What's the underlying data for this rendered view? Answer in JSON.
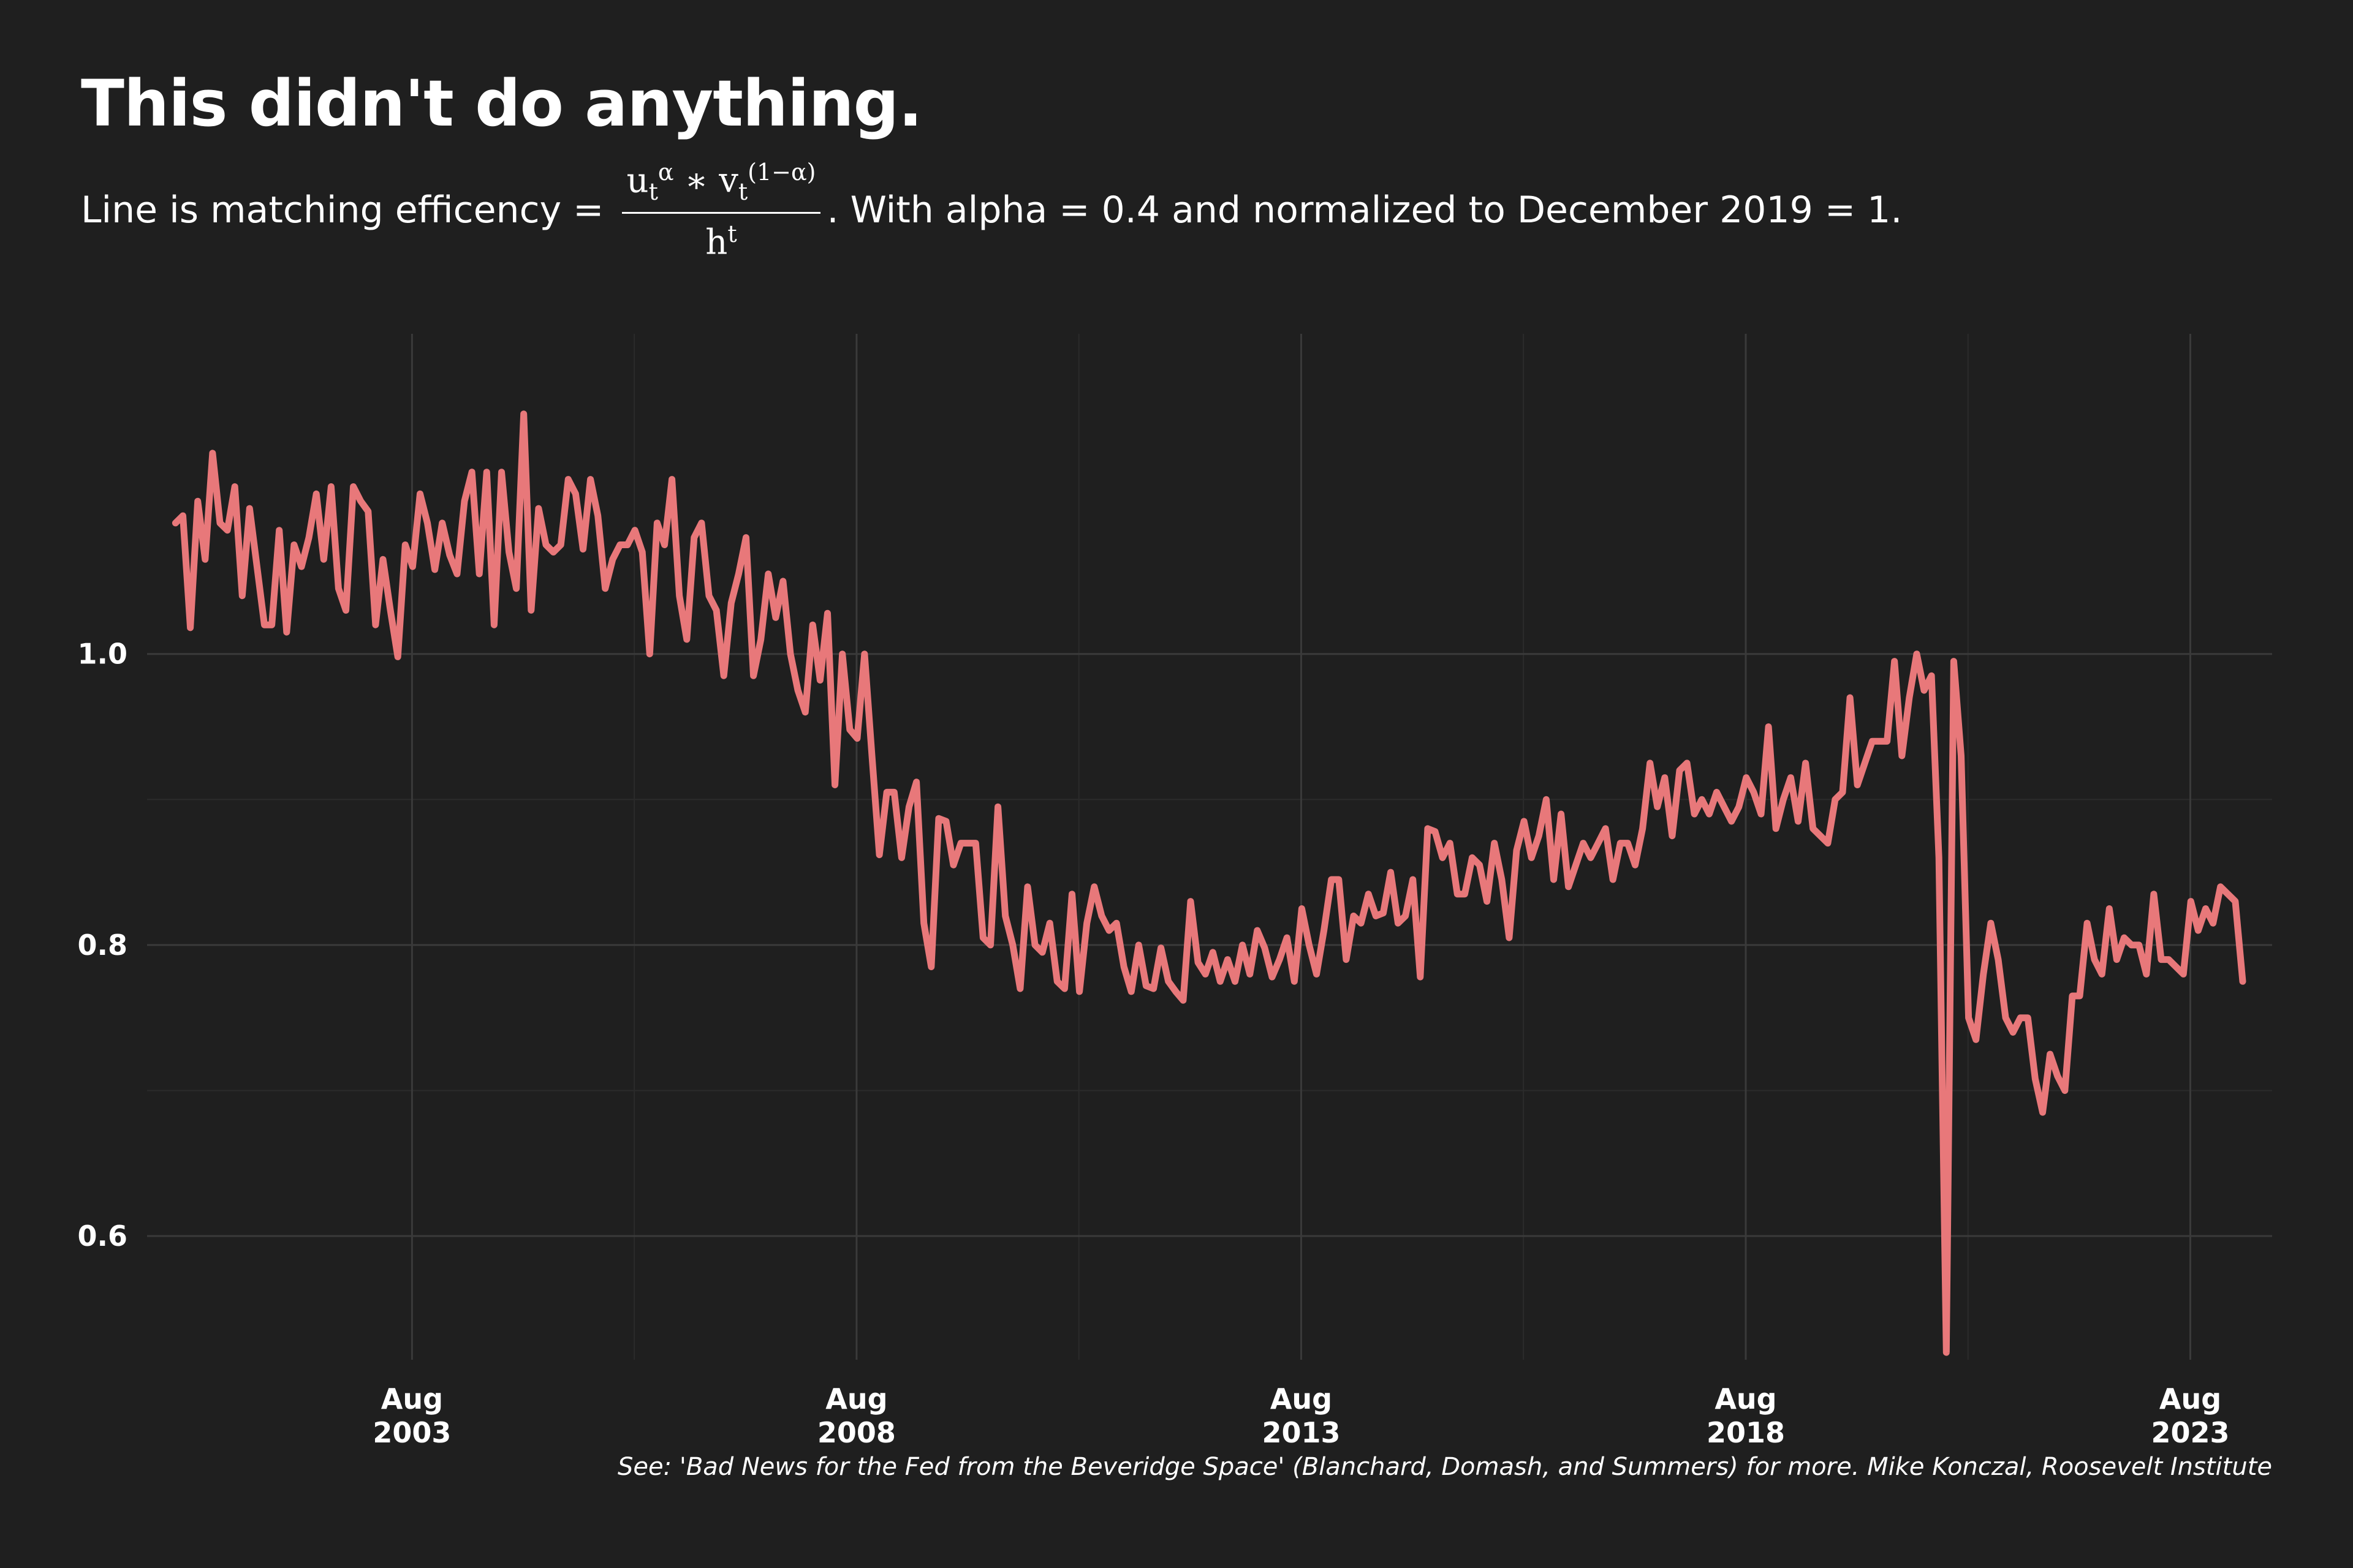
{
  "title": "This didn't do anything.",
  "subtitle": {
    "prefix": "Line is matching efficency = ",
    "formula_numerator_u": "u",
    "formula_u_sub": "t",
    "formula_u_sup": "α",
    "formula_times": " ∗ ",
    "formula_numerator_v": "v",
    "formula_v_sub": "t",
    "formula_v_sup": "(1−α)",
    "formula_denominator": "h",
    "formula_den_sup": "t",
    "suffix": ". With alpha = 0.4 and normalized to December 2019 = 1."
  },
  "caption": "See: 'Bad News for the Fed from the Beveridge Space' (Blanchard, Domash, and Summers) for more. Mike Konczal, Roosevelt Institute",
  "colors": {
    "background": "#1f1f1f",
    "line": "#e8787a",
    "grid": "#3a3a3a",
    "text": "#ffffff"
  },
  "chart_data": {
    "type": "line",
    "xlim": [
      2000.6,
      2024.5
    ],
    "ylim": [
      0.515,
      1.22
    ],
    "grid": true,
    "y_ticks": [
      {
        "value": 0.6,
        "label": "0.6"
      },
      {
        "value": 0.8,
        "label": "0.8"
      },
      {
        "value": 1.0,
        "label": "1.0"
      }
    ],
    "x_ticks": [
      {
        "value": 2003.58,
        "month": "Aug",
        "year": "2003"
      },
      {
        "value": 2008.58,
        "month": "Aug",
        "year": "2008"
      },
      {
        "value": 2013.58,
        "month": "Aug",
        "year": "2013"
      },
      {
        "value": 2018.58,
        "month": "Aug",
        "year": "2018"
      },
      {
        "value": 2023.58,
        "month": "Aug",
        "year": "2023"
      }
    ],
    "series": [
      {
        "name": "",
        "x_start": 2000.92,
        "x_step": 0.08333,
        "values": [
          1.09,
          1.095,
          1.018,
          1.105,
          1.065,
          1.138,
          1.09,
          1.085,
          1.115,
          1.04,
          1.1,
          1.06,
          1.02,
          1.02,
          1.085,
          1.015,
          1.075,
          1.06,
          1.08,
          1.11,
          1.065,
          1.115,
          1.045,
          1.03,
          1.115,
          1.105,
          1.098,
          1.02,
          1.065,
          1.03,
          0.998,
          1.075,
          1.06,
          1.11,
          1.09,
          1.058,
          1.09,
          1.068,
          1.055,
          1.105,
          1.125,
          1.055,
          1.125,
          1.02,
          1.125,
          1.07,
          1.045,
          1.165,
          1.03,
          1.1,
          1.075,
          1.07,
          1.075,
          1.12,
          1.11,
          1.072,
          1.12,
          1.095,
          1.045,
          1.065,
          1.075,
          1.075,
          1.085,
          1.07,
          1.0,
          1.09,
          1.075,
          1.12,
          1.04,
          1.01,
          1.08,
          1.09,
          1.04,
          1.03,
          0.985,
          1.035,
          1.055,
          1.08,
          0.985,
          1.01,
          1.055,
          1.025,
          1.05,
          1.0,
          0.975,
          0.96,
          1.02,
          0.982,
          1.028,
          0.91,
          1.0,
          0.948,
          0.942,
          1.0,
          0.93,
          0.862,
          0.905,
          0.905,
          0.86,
          0.895,
          0.912,
          0.815,
          0.785,
          0.887,
          0.885,
          0.855,
          0.87,
          0.87,
          0.87,
          0.805,
          0.8,
          0.895,
          0.82,
          0.8,
          0.77,
          0.84,
          0.8,
          0.795,
          0.815,
          0.775,
          0.77,
          0.835,
          0.768,
          0.815,
          0.84,
          0.82,
          0.81,
          0.815,
          0.785,
          0.768,
          0.8,
          0.772,
          0.77,
          0.798,
          0.775,
          0.768,
          0.762,
          0.83,
          0.788,
          0.78,
          0.795,
          0.775,
          0.79,
          0.775,
          0.8,
          0.78,
          0.81,
          0.798,
          0.778,
          0.79,
          0.805,
          0.775,
          0.825,
          0.8,
          0.78,
          0.81,
          0.845,
          0.845,
          0.79,
          0.82,
          0.815,
          0.835,
          0.82,
          0.822,
          0.85,
          0.815,
          0.82,
          0.845,
          0.778,
          0.88,
          0.878,
          0.86,
          0.87,
          0.835,
          0.835,
          0.86,
          0.855,
          0.83,
          0.87,
          0.845,
          0.805,
          0.865,
          0.885,
          0.86,
          0.875,
          0.9,
          0.845,
          0.89,
          0.84,
          0.855,
          0.87,
          0.86,
          0.87,
          0.88,
          0.845,
          0.87,
          0.87,
          0.855,
          0.88,
          0.925,
          0.895,
          0.915,
          0.875,
          0.92,
          0.925,
          0.89,
          0.9,
          0.89,
          0.905,
          0.895,
          0.885,
          0.895,
          0.915,
          0.905,
          0.89,
          0.95,
          0.88,
          0.9,
          0.915,
          0.885,
          0.925,
          0.88,
          0.875,
          0.87,
          0.9,
          0.905,
          0.97,
          0.91,
          0.925,
          0.94,
          0.94,
          0.94,
          0.995,
          0.93,
          0.97,
          1.0,
          0.975,
          0.985,
          0.86,
          0.52,
          0.995,
          0.93,
          0.75,
          0.735,
          0.78,
          0.815,
          0.79,
          0.75,
          0.74,
          0.75,
          0.75,
          0.708,
          0.685,
          0.725,
          0.71,
          0.7,
          0.765,
          0.765,
          0.815,
          0.79,
          0.78,
          0.825,
          0.79,
          0.805,
          0.8,
          0.8,
          0.78,
          0.835,
          0.79,
          0.79,
          0.785,
          0.78,
          0.83,
          0.81,
          0.825,
          0.815,
          0.84,
          0.835,
          0.83,
          0.775
        ]
      }
    ]
  }
}
